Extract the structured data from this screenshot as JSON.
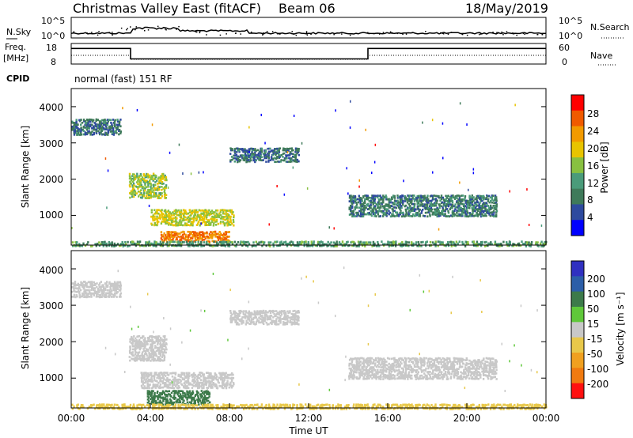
{
  "header": {
    "radar": "Christmas Valley East (fitACF)",
    "beam": "Beam 06",
    "date": "18/May/2019"
  },
  "noise_panel": {
    "left_label": "N.Sky",
    "right_label": "N.Search",
    "left_ticks": [
      "10^5",
      "10^0"
    ],
    "right_ticks": [
      "10^5",
      "10^0"
    ]
  },
  "freq_panel": {
    "left_label": "Freq.",
    "left_unit": "[MHz]",
    "right_label": "Nave",
    "left_ticks": [
      "18",
      "8"
    ],
    "right_ticks": [
      "60",
      "0"
    ],
    "freq_segments": [
      {
        "start_h": 0,
        "end_h": 3.0,
        "freq_mhz": 16.5
      },
      {
        "start_h": 3.0,
        "end_h": 15.0,
        "freq_mhz": 10.5
      },
      {
        "start_h": 15.0,
        "end_h": 24.0,
        "freq_mhz": 16.5
      }
    ]
  },
  "cpid": {
    "label": "CPID",
    "value": "normal (fast) 151 RF"
  },
  "colors": {
    "power_scale": [
      "#0000ff",
      "#2e4a9e",
      "#3f7a5a",
      "#4a9b7a",
      "#88c040",
      "#e8c400",
      "#f29a00",
      "#f05a00",
      "#ff0000"
    ],
    "velocity_scale": [
      "#3030c0",
      "#2c5ea8",
      "#3c7a4a",
      "#5fc83a",
      "#c8c8c8",
      "#e8c84a",
      "#f0a020",
      "#f07a10",
      "#ff1010"
    ]
  },
  "chart_data": [
    {
      "type": "heatmap",
      "name": "power",
      "xlabel": "",
      "ylabel": "Slant Range [km]",
      "xlim": [
        0,
        24
      ],
      "ylim": [
        180,
        4500
      ],
      "y_ticks": [
        "1000",
        "2000",
        "3000",
        "4000"
      ],
      "colorbar": {
        "label": "Power [dB]",
        "ticks": [
          "4",
          "8",
          "12",
          "16",
          "20",
          "24",
          "28"
        ],
        "range": [
          0,
          32
        ]
      },
      "regions": [
        {
          "t0": 0.0,
          "t1": 2.5,
          "r0": 3250,
          "r1": 3700,
          "level": 9
        },
        {
          "t0": 2.9,
          "t1": 4.8,
          "r0": 1500,
          "r1": 2200,
          "level": 18
        },
        {
          "t0": 4.0,
          "t1": 8.2,
          "r0": 750,
          "r1": 1200,
          "level": 20
        },
        {
          "t0": 4.5,
          "t1": 8.0,
          "r0": 300,
          "r1": 600,
          "level": 28
        },
        {
          "t0": 8.0,
          "t1": 11.5,
          "r0": 2500,
          "r1": 2900,
          "level": 9
        },
        {
          "t0": 14.0,
          "t1": 21.5,
          "r0": 1000,
          "r1": 1600,
          "level": 10
        },
        {
          "t0": 0.0,
          "t1": 24.0,
          "r0": 180,
          "r1": 330,
          "level": 14
        }
      ]
    },
    {
      "type": "heatmap",
      "name": "velocity",
      "xlabel": "Time UT",
      "ylabel": "Slant Range [km]",
      "xlim": [
        0,
        24
      ],
      "ylim": [
        180,
        4500
      ],
      "x_ticks": [
        "00:00",
        "04:00",
        "08:00",
        "12:00",
        "16:00",
        "20:00",
        "00:00"
      ],
      "y_ticks": [
        "1000",
        "2000",
        "3000",
        "4000"
      ],
      "colorbar": {
        "label": "Velocity [m s⁻¹]",
        "ticks": [
          "200",
          "100",
          "50",
          "15",
          "-15",
          "-50",
          "-100",
          "-200"
        ]
      },
      "regions": [
        {
          "t0": 0.0,
          "t1": 2.5,
          "r0": 3250,
          "r1": 3700,
          "level": 0
        },
        {
          "t0": 2.9,
          "t1": 4.8,
          "r0": 1500,
          "r1": 2200,
          "level": 0
        },
        {
          "t0": 3.5,
          "t1": 8.2,
          "r0": 750,
          "r1": 1200,
          "level": 0
        },
        {
          "t0": 3.8,
          "t1": 7.0,
          "r0": 300,
          "r1": 700,
          "level": 40
        },
        {
          "t0": 8.0,
          "t1": 11.5,
          "r0": 2500,
          "r1": 2900,
          "level": 0
        },
        {
          "t0": 14.0,
          "t1": 21.5,
          "r0": 1000,
          "r1": 1600,
          "level": 0
        },
        {
          "t0": 0.0,
          "t1": 24.0,
          "r0": 180,
          "r1": 330,
          "level": -20
        }
      ]
    }
  ]
}
